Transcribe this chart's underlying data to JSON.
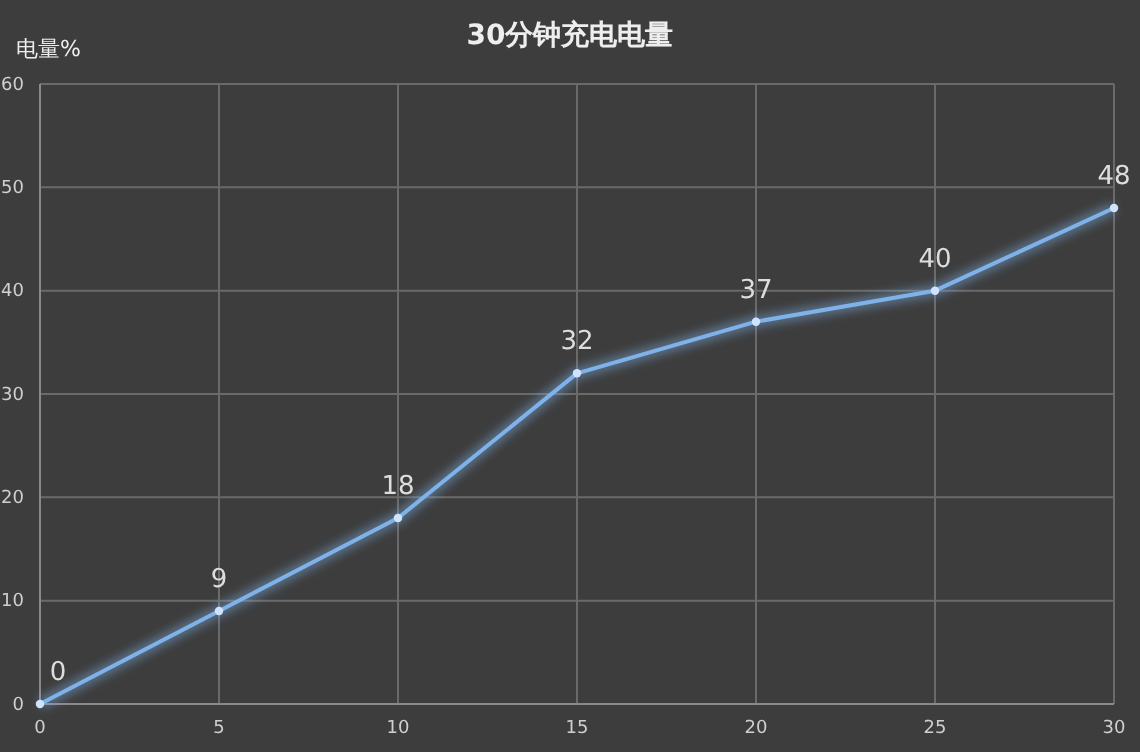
{
  "chart_data": {
    "type": "line",
    "title": "30分钟充电电量",
    "ylabel": "电量%",
    "x": [
      0,
      5,
      10,
      15,
      20,
      25,
      30
    ],
    "series": [
      {
        "color": "#7fb2e8",
        "values": [
          0,
          9,
          18,
          32,
          37,
          40,
          48
        ]
      }
    ],
    "xlim": [
      0,
      30
    ],
    "xticks": [
      0,
      5,
      10,
      15,
      20,
      25,
      30
    ],
    "ylim": [
      0,
      60
    ],
    "yticks": [
      0,
      10,
      20,
      30,
      40,
      50,
      60
    ],
    "grid": true,
    "marker": "circle",
    "line_style": "solid",
    "data_labels": true
  }
}
